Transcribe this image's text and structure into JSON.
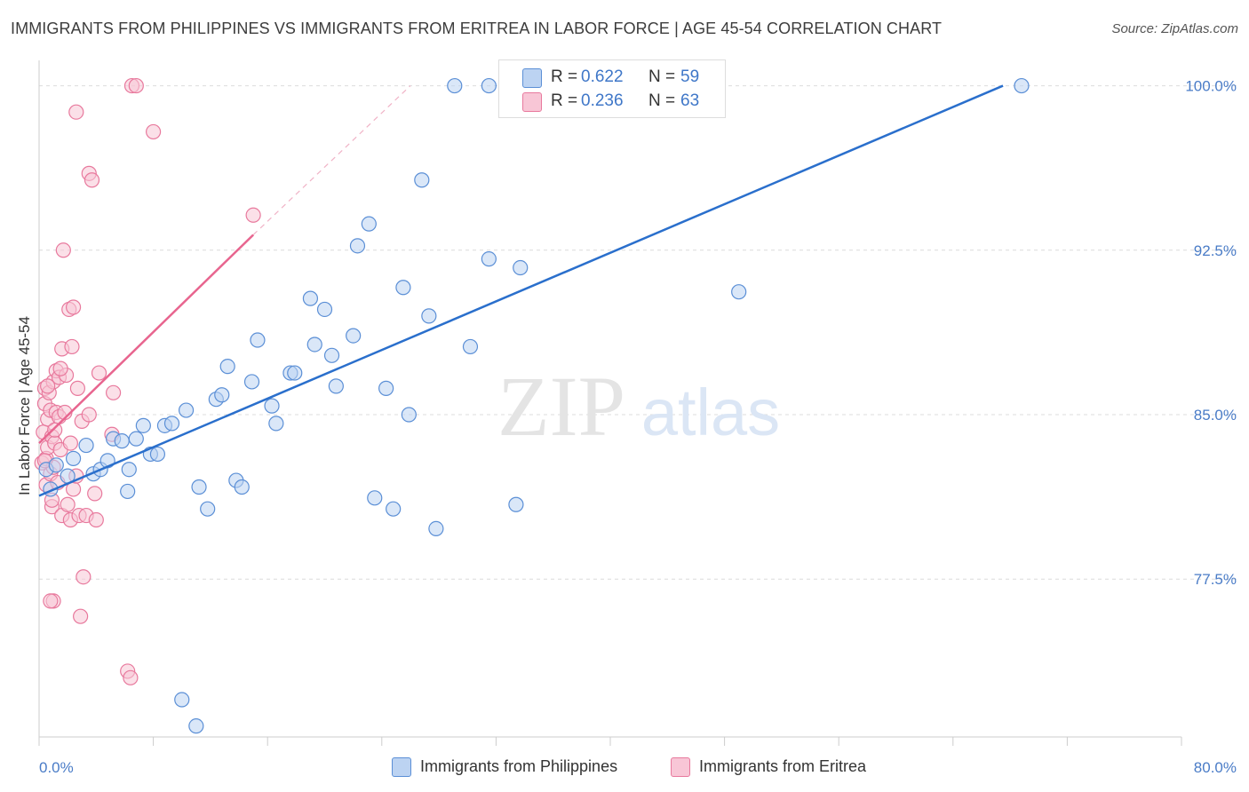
{
  "title": "IMMIGRANTS FROM PHILIPPINES VS IMMIGRANTS FROM ERITREA IN LABOR FORCE | AGE 45-54 CORRELATION CHART",
  "source": "Source: ZipAtlas.com",
  "watermark": {
    "zip": "ZIP",
    "atlas": "atlas"
  },
  "legend": {
    "philippines": {
      "r_label": "R =",
      "r_value": "0.622",
      "n_label": "N =",
      "n_value": "59"
    },
    "eritrea": {
      "r_label": "R =",
      "r_value": "0.236",
      "n_label": "N =",
      "n_value": "63"
    }
  },
  "bottom_legend": {
    "philippines": "Immigrants from Philippines",
    "eritrea": "Immigrants from Eritrea"
  },
  "colors": {
    "blue_fill": "#bcd3f2",
    "blue_stroke": "#5b8fd6",
    "blue_line": "#2a6fcc",
    "pink_fill": "#f8c6d6",
    "pink_stroke": "#e8799d",
    "pink_line": "#e8658f"
  },
  "chart_data": {
    "type": "scatter",
    "title": "IMMIGRANTS FROM PHILIPPINES VS IMMIGRANTS FROM ERITREA IN LABOR FORCE | AGE 45-54 CORRELATION CHART",
    "xlabel": "",
    "ylabel": "In Labor Force | Age 45-54",
    "xlim": [
      0,
      80
    ],
    "ylim": [
      70.3,
      101.4
    ],
    "x_tick_labels": [
      "0.0%",
      "80.0%"
    ],
    "y_ticks": [
      77.5,
      85.0,
      92.5,
      100.0
    ],
    "y_tick_labels": [
      "77.5%",
      "85.0%",
      "92.5%",
      "100.0%"
    ],
    "series": [
      {
        "name": "Immigrants from Philippines",
        "points": [
          [
            0.5,
            82.5
          ],
          [
            0.8,
            81.6
          ],
          [
            1.2,
            82.7
          ],
          [
            2.0,
            82.2
          ],
          [
            2.4,
            83.0
          ],
          [
            3.3,
            83.6
          ],
          [
            3.8,
            82.3
          ],
          [
            4.3,
            82.5
          ],
          [
            4.8,
            82.9
          ],
          [
            5.2,
            83.9
          ],
          [
            5.8,
            83.8
          ],
          [
            6.3,
            82.5
          ],
          [
            6.8,
            83.9
          ],
          [
            7.3,
            84.5
          ],
          [
            7.8,
            83.2
          ],
          [
            8.3,
            83.2
          ],
          [
            8.8,
            84.5
          ],
          [
            9.3,
            84.6
          ],
          [
            10.3,
            85.2
          ],
          [
            11.2,
            81.7
          ],
          [
            11.8,
            80.7
          ],
          [
            12.4,
            85.7
          ],
          [
            12.8,
            85.9
          ],
          [
            13.2,
            87.2
          ],
          [
            13.8,
            82.0
          ],
          [
            14.2,
            81.7
          ],
          [
            14.9,
            86.5
          ],
          [
            15.3,
            88.4
          ],
          [
            16.3,
            85.4
          ],
          [
            16.6,
            84.6
          ],
          [
            17.6,
            86.9
          ],
          [
            17.9,
            86.9
          ],
          [
            19.0,
            90.3
          ],
          [
            19.3,
            88.2
          ],
          [
            20.0,
            89.8
          ],
          [
            20.5,
            87.7
          ],
          [
            20.8,
            86.3
          ],
          [
            22.0,
            88.6
          ],
          [
            22.3,
            92.7
          ],
          [
            23.1,
            93.7
          ],
          [
            23.5,
            81.2
          ],
          [
            24.3,
            86.2
          ],
          [
            24.8,
            80.7
          ],
          [
            25.5,
            90.8
          ],
          [
            25.9,
            85.0
          ],
          [
            26.8,
            95.7
          ],
          [
            27.3,
            89.5
          ],
          [
            27.8,
            79.8
          ],
          [
            30.2,
            88.1
          ],
          [
            31.5,
            92.1
          ],
          [
            33.4,
            80.9
          ],
          [
            33.7,
            91.7
          ],
          [
            49.0,
            90.6
          ],
          [
            10.0,
            72.0
          ],
          [
            11.0,
            70.8
          ],
          [
            29.1,
            100.0
          ],
          [
            31.5,
            100.0
          ],
          [
            68.8,
            100.0
          ],
          [
            6.2,
            81.5
          ]
        ]
      },
      {
        "name": "Immigrants from Eritrea",
        "points": [
          [
            0.2,
            82.8
          ],
          [
            0.3,
            84.2
          ],
          [
            0.4,
            85.5
          ],
          [
            0.4,
            86.2
          ],
          [
            0.5,
            83.0
          ],
          [
            0.5,
            81.8
          ],
          [
            0.6,
            83.5
          ],
          [
            0.6,
            84.8
          ],
          [
            0.7,
            86.0
          ],
          [
            0.8,
            82.3
          ],
          [
            0.8,
            85.2
          ],
          [
            0.9,
            80.8
          ],
          [
            0.9,
            84.0
          ],
          [
            1.0,
            86.5
          ],
          [
            1.0,
            82.6
          ],
          [
            1.1,
            83.7
          ],
          [
            1.2,
            85.1
          ],
          [
            1.2,
            87.0
          ],
          [
            1.3,
            81.9
          ],
          [
            1.4,
            84.9
          ],
          [
            1.4,
            86.7
          ],
          [
            1.5,
            83.4
          ],
          [
            1.6,
            80.4
          ],
          [
            1.6,
            88.0
          ],
          [
            1.7,
            92.5
          ],
          [
            1.8,
            85.1
          ],
          [
            1.9,
            86.8
          ],
          [
            2.0,
            80.9
          ],
          [
            2.1,
            89.8
          ],
          [
            2.2,
            80.2
          ],
          [
            2.3,
            88.1
          ],
          [
            2.4,
            89.9
          ],
          [
            2.4,
            81.6
          ],
          [
            2.6,
            98.8
          ],
          [
            2.7,
            86.2
          ],
          [
            2.8,
            80.4
          ],
          [
            2.9,
            75.8
          ],
          [
            3.0,
            84.7
          ],
          [
            3.1,
            77.6
          ],
          [
            3.3,
            80.4
          ],
          [
            3.5,
            96.0
          ],
          [
            3.7,
            95.7
          ],
          [
            3.9,
            81.4
          ],
          [
            4.0,
            80.2
          ],
          [
            4.2,
            86.9
          ],
          [
            5.1,
            84.1
          ],
          [
            5.2,
            86.0
          ],
          [
            6.2,
            73.3
          ],
          [
            6.4,
            73.0
          ],
          [
            6.5,
            100.0
          ],
          [
            6.8,
            100.0
          ],
          [
            8.0,
            97.9
          ],
          [
            15.0,
            94.1
          ],
          [
            1.0,
            76.5
          ],
          [
            0.8,
            76.5
          ],
          [
            0.6,
            86.3
          ],
          [
            0.4,
            82.9
          ],
          [
            2.2,
            83.7
          ],
          [
            3.5,
            85.0
          ],
          [
            1.5,
            87.1
          ],
          [
            0.9,
            81.1
          ],
          [
            2.6,
            82.2
          ],
          [
            1.1,
            84.3
          ]
        ]
      }
    ],
    "trendlines": [
      {
        "series": "Immigrants from Philippines",
        "x": [
          0.0,
          67.5
        ],
        "y": [
          81.3,
          100.0
        ]
      },
      {
        "series": "Immigrants from Eritrea",
        "x": [
          0.0,
          15.0
        ],
        "y": [
          83.7,
          93.2
        ],
        "dashed_extension_to": [
          26.0,
          100.0
        ]
      }
    ]
  }
}
